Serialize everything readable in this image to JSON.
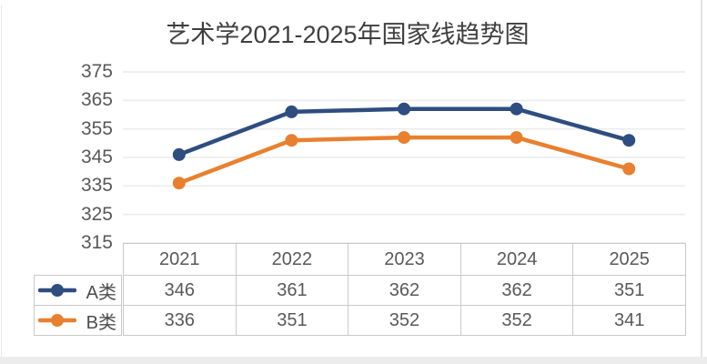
{
  "title": "艺术学2021-2025年国家线趋势图",
  "chart_data": {
    "type": "line",
    "title": "艺术学2021-2025年国家线趋势图",
    "categories": [
      "2021",
      "2022",
      "2023",
      "2024",
      "2025"
    ],
    "series": [
      {
        "name": "A类",
        "values": [
          346,
          361,
          362,
          362,
          351
        ],
        "color": "#2e4d80"
      },
      {
        "name": "B类",
        "values": [
          336,
          351,
          352,
          352,
          341
        ],
        "color": "#e8802f"
      }
    ],
    "yticks": [
      375,
      365,
      355,
      345,
      335,
      325,
      315
    ],
    "ylim": [
      315,
      375
    ],
    "grid": true,
    "legend_position": "data-table-left",
    "data_table_shown": true
  },
  "colors": {
    "series_a": "#2e4d80",
    "series_b": "#e8802f",
    "gridline": "#ececec",
    "table_border": "#c9c9c9",
    "axis_text": "#595959",
    "title_text": "#3f3f3f",
    "page_edge": "#ececec"
  }
}
